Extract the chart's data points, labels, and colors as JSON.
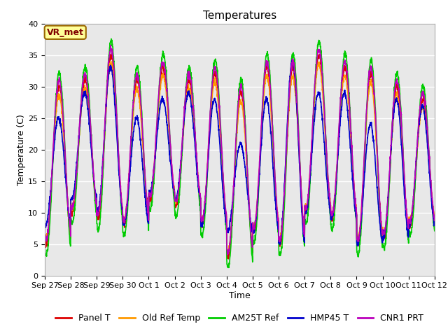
{
  "title": "Temperatures",
  "xlabel": "Time",
  "ylabel": "Temperature (C)",
  "ylim": [
    0,
    40
  ],
  "n_days": 15,
  "x_tick_labels": [
    "Sep 27",
    "Sep 28",
    "Sep 29",
    "Sep 30",
    "Oct 1",
    "Oct 2",
    "Oct 3",
    "Oct 4",
    "Oct 5",
    "Oct 6",
    "Oct 7",
    "Oct 8",
    "Oct 9",
    "Oct 10",
    "Oct 11",
    "Oct 12"
  ],
  "bg_color": "#e8e8e8",
  "fig_bg": "#ffffff",
  "grid_color": "#ffffff",
  "annotation_text": "VR_met",
  "annotation_bg": "#ffff99",
  "annotation_border": "#996600",
  "annotation_text_color": "#800000",
  "series_names": [
    "Panel T",
    "Old Ref Temp",
    "AM25T Ref",
    "HMP45 T",
    "CNR1 PRT"
  ],
  "series_colors": [
    "#dd0000",
    "#ff9900",
    "#00cc00",
    "#0000cc",
    "#bb00bb"
  ],
  "series_lw": [
    1.2,
    1.2,
    1.2,
    1.2,
    1.2
  ],
  "title_fontsize": 11,
  "axis_fontsize": 9,
  "tick_fontsize": 8,
  "legend_fontsize": 9,
  "day_maxima": [
    30,
    31,
    35,
    31,
    33,
    31,
    32,
    29,
    33,
    33,
    35,
    33,
    32,
    30,
    28
  ],
  "day_minima": [
    5,
    10,
    9,
    8,
    12,
    11,
    8,
    3,
    7,
    5,
    10,
    9,
    5,
    6,
    8
  ],
  "hmp45_maxima": [
    25,
    29,
    33,
    25,
    28,
    29,
    28,
    21,
    28,
    34,
    29,
    29,
    24,
    28,
    27
  ],
  "hmp45_minima": [
    8,
    12,
    10,
    8,
    13,
    12,
    8,
    7,
    7,
    5,
    10,
    9,
    5,
    6,
    8
  ]
}
